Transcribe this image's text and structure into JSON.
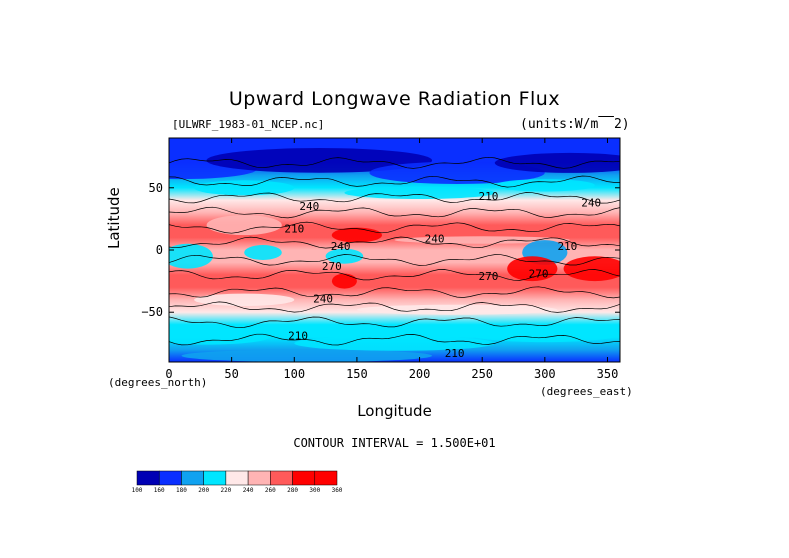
{
  "chart_data": {
    "type": "heatmap",
    "title": "Upward Longwave Radiation Flux",
    "subtitle_left": "[ULWRF_1983-01_NCEP.nc]",
    "subtitle_right": "(units:W/m^2)",
    "xlabel": "Longitude",
    "ylabel": "Latitude",
    "x_axis_note": "(degrees_east)",
    "y_axis_note": "(degrees_north)",
    "xlim": [
      0,
      360
    ],
    "ylim": [
      -90,
      90
    ],
    "x_ticks": [
      0,
      50,
      100,
      150,
      200,
      250,
      300,
      350
    ],
    "y_ticks": [
      50,
      0,
      -50
    ],
    "x_tick_labels": [
      "0",
      "50",
      "100",
      "150",
      "200",
      "250",
      "300",
      "350"
    ],
    "y_tick_labels": [
      "50",
      "0",
      "−50"
    ],
    "contour_interval_text": "CONTOUR INTERVAL = 1.500E+01",
    "colorbar": {
      "levels": [
        100,
        160,
        180,
        200,
        220,
        240,
        260,
        280,
        300,
        360
      ],
      "labels": [
        "100",
        "160",
        "180",
        "200",
        "220",
        "240",
        "260",
        "280",
        "300",
        "360"
      ],
      "colors": [
        "#0000b4",
        "#0a2fff",
        "#10a2f0",
        "#00e6ff",
        "#ffe8e8",
        "#ffb4b4",
        "#ff5a5a",
        "#ff0000",
        "#ff0000"
      ]
    },
    "zonal_profile": {
      "latitudes": [
        90,
        80,
        70,
        60,
        50,
        40,
        30,
        20,
        10,
        0,
        -10,
        -20,
        -30,
        -40,
        -50,
        -60,
        -70,
        -80,
        -90
      ],
      "values": [
        160,
        165,
        175,
        190,
        205,
        225,
        250,
        275,
        265,
        250,
        255,
        268,
        270,
        250,
        228,
        210,
        200,
        190,
        175
      ]
    },
    "contour_labels": [
      {
        "text": "210",
        "lon": 255,
        "lat": 40
      },
      {
        "text": "240",
        "lon": 112,
        "lat": 32
      },
      {
        "text": "240",
        "lon": 337,
        "lat": 35
      },
      {
        "text": "210",
        "lon": 100,
        "lat": 14
      },
      {
        "text": "240",
        "lon": 137,
        "lat": 0
      },
      {
        "text": "240",
        "lon": 212,
        "lat": 6
      },
      {
        "text": "210",
        "lon": 318,
        "lat": 0
      },
      {
        "text": "270",
        "lon": 130,
        "lat": -16
      },
      {
        "text": "270",
        "lon": 255,
        "lat": -24
      },
      {
        "text": "270",
        "lon": 295,
        "lat": -22
      },
      {
        "text": "240",
        "lon": 123,
        "lat": -42
      },
      {
        "text": "210",
        "lon": 103,
        "lat": -72
      },
      {
        "text": "210",
        "lon": 228,
        "lat": -86
      }
    ]
  }
}
